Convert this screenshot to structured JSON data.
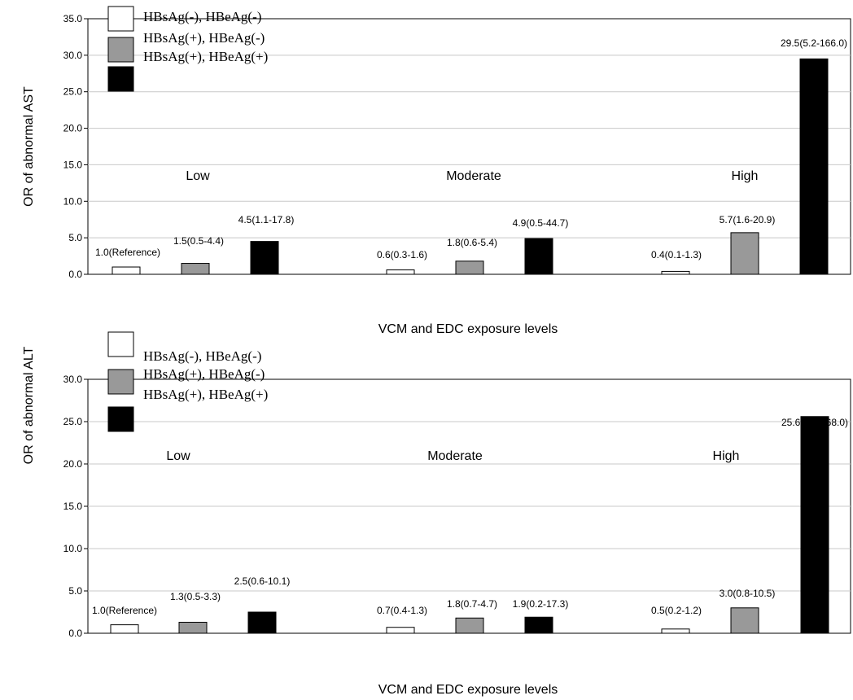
{
  "chart_data": [
    {
      "type": "bar",
      "title": "",
      "xlabel": "VCM and EDC exposure levels",
      "ylabel": "OR of abnormal AST",
      "ylim": [
        0,
        35
      ],
      "yticks": [
        "0.0",
        "5.0",
        "10.0",
        "15.0",
        "20.0",
        "25.0",
        "30.0",
        "35.0"
      ],
      "categories": [
        "Low",
        "Moderate",
        "High"
      ],
      "legend_position": "top-left",
      "series": [
        {
          "name": "HBsAg(-), HBeAg(-)",
          "color": "#ffffff",
          "values": [
            1.0,
            0.6,
            0.4
          ],
          "labels": [
            "1.0(Reference)",
            "0.6(0.3-1.6)",
            "0.4(0.1-1.3)"
          ]
        },
        {
          "name": "HBsAg(+), HBeAg(-)",
          "color": "#999999",
          "values": [
            1.5,
            1.8,
            5.7
          ],
          "labels": [
            "1.5(0.5-4.4)",
            "1.8(0.6-5.4)",
            "5.7(1.6-20.9)"
          ]
        },
        {
          "name": "HBsAg(+), HBeAg(+)",
          "color": "#000000",
          "values": [
            4.5,
            4.9,
            29.5
          ],
          "labels": [
            "4.5(1.1-17.8)",
            "4.9(0.5-44.7)",
            "29.5(5.2-166.0)"
          ]
        }
      ]
    },
    {
      "type": "bar",
      "title": "",
      "xlabel": "VCM and EDC exposure levels",
      "ylabel": "OR of abnormal ALT",
      "ylim": [
        0,
        30
      ],
      "yticks": [
        "0.0",
        "5.0",
        "10.0",
        "15.0",
        "20.0",
        "25.0",
        "30.0"
      ],
      "categories": [
        "Low",
        "Moderate",
        "High"
      ],
      "legend_position": "top-left",
      "series": [
        {
          "name": "HBsAg(-), HBeAg(-)",
          "color": "#ffffff",
          "values": [
            1.0,
            0.7,
            0.5
          ],
          "labels": [
            "1.0(Reference)",
            "0.7(0.4-1.3)",
            "0.5(0.2-1.2)"
          ]
        },
        {
          "name": "HBsAg(+), HBeAg(-)",
          "color": "#999999",
          "values": [
            1.3,
            1.8,
            3.0
          ],
          "labels": [
            "1.3(0.5-3.3)",
            "1.8(0.7-4.7)",
            "3.0(0.8-10.5)"
          ]
        },
        {
          "name": "HBsAg(+), HBeAg(+)",
          "color": "#000000",
          "values": [
            2.5,
            1.9,
            25.6
          ],
          "labels": [
            "2.5(0.6-10.1)",
            "1.9(0.2-17.3)",
            "25.6(3.9-168.0)"
          ]
        }
      ]
    }
  ]
}
